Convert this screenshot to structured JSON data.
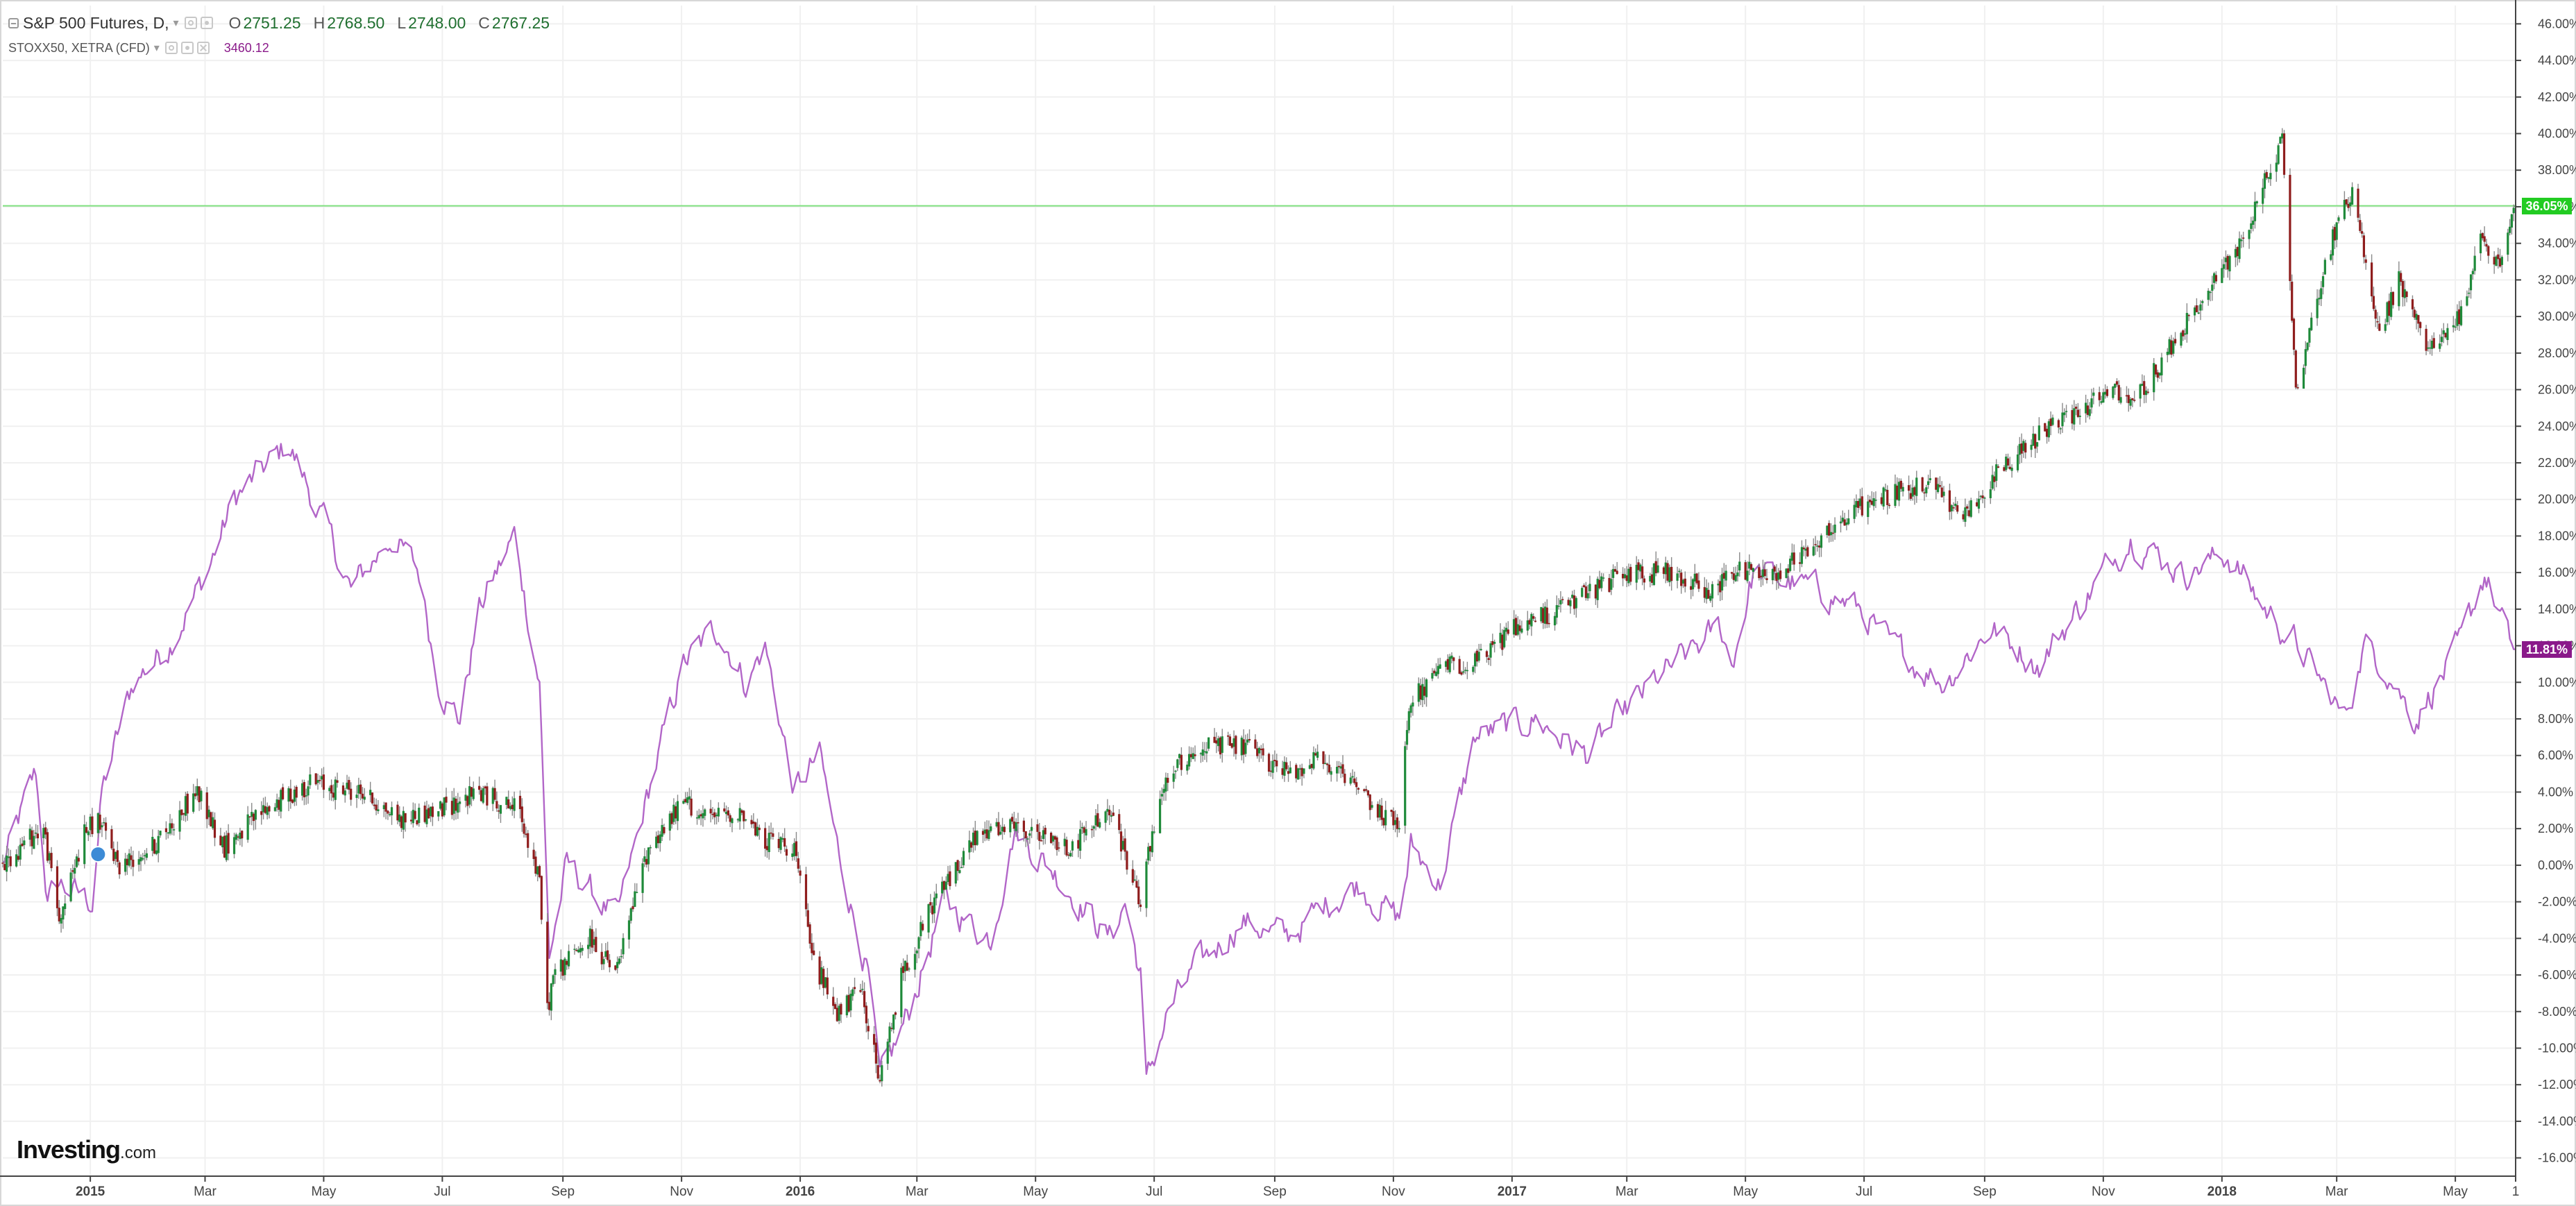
{
  "legend": {
    "main": {
      "title": "S&P 500 Futures, D,",
      "open_key": "O",
      "open": "2751.25",
      "high_key": "H",
      "high": "2768.50",
      "low_key": "L",
      "low": "2748.00",
      "close_key": "C",
      "close": "2767.25"
    },
    "compare": {
      "title": "STOXX50, XETRA (CFD)",
      "value": "3460.12"
    }
  },
  "logo": {
    "name": "Investing",
    "suffix": ".com"
  },
  "price_labels": {
    "spx": {
      "text": "36.05%",
      "color": "#22cc22"
    },
    "stoxx": {
      "text": "11.81%",
      "color": "#8a1a8a"
    }
  },
  "colors": {
    "up": "#1f8a3a",
    "down": "#8f1d1d",
    "wick": "#8a8a8a",
    "stoxx_line": "#b266c8",
    "grid": "#f0f0f0",
    "axis": "#444444"
  },
  "chart_data": {
    "type": "line",
    "title": "S&P 500 Futures, D,",
    "ylabel": "",
    "xlabel": "",
    "ylim": [
      -17,
      47
    ],
    "yticks": [
      46,
      44,
      42,
      40,
      38,
      36,
      34,
      32,
      30,
      28,
      26,
      24,
      22,
      20,
      18,
      16,
      14,
      12,
      10,
      8,
      6,
      4,
      2,
      0,
      -2,
      -4,
      -6,
      -8,
      -10,
      -12,
      -14,
      -16
    ],
    "y_tick_suffix": ".00%",
    "xlim": [
      "2014-11-17",
      "2018-06-01"
    ],
    "x_ticks": [
      {
        "date": "2015-01-01",
        "label": "2015",
        "bold": true
      },
      {
        "date": "2015-03-01",
        "label": "Mar"
      },
      {
        "date": "2015-05-01",
        "label": "May"
      },
      {
        "date": "2015-07-01",
        "label": "Jul"
      },
      {
        "date": "2015-09-01",
        "label": "Sep"
      },
      {
        "date": "2015-11-01",
        "label": "Nov"
      },
      {
        "date": "2016-01-01",
        "label": "2016",
        "bold": true
      },
      {
        "date": "2016-03-01",
        "label": "Mar"
      },
      {
        "date": "2016-05-01",
        "label": "May"
      },
      {
        "date": "2016-07-01",
        "label": "Jul"
      },
      {
        "date": "2016-09-01",
        "label": "Sep"
      },
      {
        "date": "2016-11-01",
        "label": "Nov"
      },
      {
        "date": "2017-01-01",
        "label": "2017",
        "bold": true
      },
      {
        "date": "2017-03-01",
        "label": "Mar"
      },
      {
        "date": "2017-05-01",
        "label": "May"
      },
      {
        "date": "2017-07-01",
        "label": "Jul"
      },
      {
        "date": "2017-09-01",
        "label": "Sep"
      },
      {
        "date": "2017-11-01",
        "label": "Nov"
      },
      {
        "date": "2018-01-01",
        "label": "2018",
        "bold": true
      },
      {
        "date": "2018-03-01",
        "label": "Mar"
      },
      {
        "date": "2018-05-01",
        "label": "May"
      },
      {
        "date": "2018-06-01",
        "label": "1"
      }
    ],
    "reference_line": 36.05,
    "series": [
      {
        "name": "S&P 500 Futures",
        "style": "candlestick",
        "x": [
          "2014-11-17",
          "2014-12-01",
          "2014-12-08",
          "2014-12-16",
          "2014-12-29",
          "2015-01-05",
          "2015-01-16",
          "2015-02-02",
          "2015-02-25",
          "2015-03-11",
          "2015-03-31",
          "2015-04-24",
          "2015-05-20",
          "2015-06-10",
          "2015-06-29",
          "2015-07-20",
          "2015-08-10",
          "2015-08-20",
          "2015-08-24",
          "2015-08-27",
          "2015-09-15",
          "2015-09-28",
          "2015-10-15",
          "2015-11-03",
          "2015-11-13",
          "2015-12-01",
          "2015-12-11",
          "2015-12-29",
          "2016-01-07",
          "2016-01-20",
          "2016-02-02",
          "2016-02-11",
          "2016-02-22",
          "2016-03-10",
          "2016-03-31",
          "2016-04-20",
          "2016-05-19",
          "2016-06-08",
          "2016-06-24",
          "2016-06-27",
          "2016-07-08",
          "2016-07-25",
          "2016-08-15",
          "2016-09-09",
          "2016-09-22",
          "2016-10-14",
          "2016-11-04",
          "2016-11-09",
          "2016-12-01",
          "2016-12-13",
          "2017-01-03",
          "2017-01-25",
          "2017-03-01",
          "2017-03-22",
          "2017-04-13",
          "2017-04-24",
          "2017-05-17",
          "2017-06-09",
          "2017-07-06",
          "2017-08-08",
          "2017-08-11",
          "2017-08-21",
          "2017-09-11",
          "2017-10-05",
          "2017-11-07",
          "2017-11-15",
          "2017-12-04",
          "2017-12-29",
          "2018-01-10",
          "2018-01-26",
          "2018-02-01",
          "2018-02-05",
          "2018-02-08",
          "2018-02-26",
          "2018-03-09",
          "2018-03-23",
          "2018-04-02",
          "2018-04-18",
          "2018-05-03",
          "2018-05-14",
          "2018-05-25",
          "2018-05-29",
          "2018-06-01"
        ],
        "values": [
          0,
          1.5,
          2,
          -3,
          1.8,
          2.5,
          0,
          1,
          4,
          1,
          3,
          4.5,
          4,
          2.5,
          3,
          4,
          3,
          -1,
          -8,
          -6,
          -4,
          -6,
          1,
          3.5,
          2.5,
          3,
          1.5,
          1,
          -5,
          -8,
          -7,
          -12,
          -6,
          -2,
          1.5,
          2,
          1,
          3,
          -2,
          0,
          5,
          6.5,
          6.5,
          5,
          6,
          4,
          2,
          9,
          11,
          11,
          13,
          14,
          16,
          16,
          15,
          16,
          16,
          18,
          20,
          21,
          20,
          19,
          22,
          24,
          26,
          25,
          28,
          32,
          34,
          38,
          40,
          32,
          26,
          34,
          37,
          29,
          32,
          28,
          30,
          34,
          33,
          35,
          36.05
        ]
      },
      {
        "name": "STOXX50, XETRA (CFD)",
        "style": "line",
        "x": [
          "2014-11-17",
          "2014-12-04",
          "2014-12-10",
          "2014-12-16",
          "2015-01-02",
          "2015-01-07",
          "2015-01-23",
          "2015-02-10",
          "2015-03-02",
          "2015-03-16",
          "2015-04-13",
          "2015-04-30",
          "2015-05-15",
          "2015-06-05",
          "2015-06-19",
          "2015-06-29",
          "2015-07-10",
          "2015-07-20",
          "2015-08-07",
          "2015-08-20",
          "2015-08-25",
          "2015-09-03",
          "2015-09-29",
          "2015-10-15",
          "2015-11-02",
          "2015-11-20",
          "2015-12-04",
          "2015-12-14",
          "2015-12-29",
          "2016-01-11",
          "2016-01-20",
          "2016-02-05",
          "2016-02-11",
          "2016-02-26",
          "2016-03-15",
          "2016-04-08",
          "2016-04-20",
          "2016-05-16",
          "2016-06-08",
          "2016-06-16",
          "2016-06-24",
          "2016-06-27",
          "2016-07-08",
          "2016-07-20",
          "2016-08-15",
          "2016-09-07",
          "2016-09-29",
          "2016-10-14",
          "2016-11-04",
          "2016-11-10",
          "2016-11-25",
          "2016-12-13",
          "2017-01-13",
          "2017-02-08",
          "2017-03-15",
          "2017-04-18",
          "2017-04-24",
          "2017-05-05",
          "2017-06-09",
          "2017-06-29",
          "2017-07-14",
          "2017-08-11",
          "2017-09-04",
          "2017-09-29",
          "2017-11-01",
          "2017-11-15",
          "2017-12-12",
          "2018-01-04",
          "2018-01-23",
          "2018-02-09",
          "2018-03-05",
          "2018-03-15",
          "2018-03-26",
          "2018-04-10",
          "2018-05-04",
          "2018-05-16",
          "2018-05-29",
          "2018-06-01"
        ],
        "values": [
          0,
          5,
          -2,
          -1,
          -2,
          4,
          10,
          12,
          16,
          20,
          23,
          19,
          15,
          18,
          16,
          10,
          8,
          14,
          18,
          10,
          -5,
          0,
          -3,
          4,
          11,
          13,
          10,
          12,
          4,
          6,
          1,
          -6,
          -12,
          -8,
          -2,
          -4,
          2,
          -1,
          -4,
          -2,
          -6,
          -12,
          -8,
          -6,
          -3,
          -4,
          -2,
          -1,
          -3,
          1,
          -1,
          7,
          8,
          6,
          10,
          13,
          11,
          16,
          15,
          14,
          12,
          10,
          13,
          11,
          16,
          18,
          16,
          17,
          14,
          12,
          8,
          12,
          11,
          8,
          12,
          16,
          12,
          11.81
        ]
      }
    ]
  }
}
